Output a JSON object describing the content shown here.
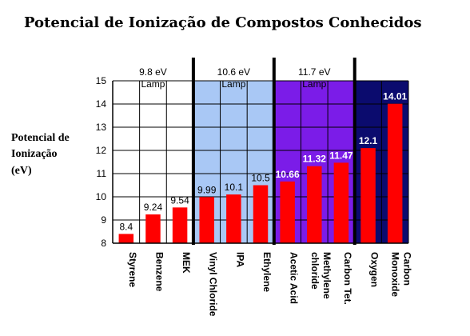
{
  "chart_data": {
    "type": "bar",
    "title": "Potencial de Ionização de Compostos Conhecidos",
    "ylabel_lines": [
      "Potencial de",
      "Ionização",
      "(eV)"
    ],
    "xlabel": "",
    "ylim": [
      8,
      15
    ],
    "yticks": [
      8,
      9,
      10,
      11,
      12,
      13,
      14,
      15
    ],
    "grid": true,
    "bar_color": "#ff0000",
    "categories": [
      {
        "lines": [
          "Styrene"
        ]
      },
      {
        "lines": [
          "Benzene"
        ]
      },
      {
        "lines": [
          "MEK"
        ]
      },
      {
        "lines": [
          "Vinyl Chloride"
        ]
      },
      {
        "lines": [
          "IPA"
        ]
      },
      {
        "lines": [
          "Ethylene"
        ]
      },
      {
        "lines": [
          "Acetic Acid"
        ]
      },
      {
        "lines": [
          "Methylene",
          "chloride"
        ]
      },
      {
        "lines": [
          "Carbon Tet."
        ]
      },
      {
        "lines": [
          "Oxygen"
        ]
      },
      {
        "lines": [
          "Carbon",
          "Monoxide"
        ]
      }
    ],
    "values": [
      8.4,
      9.24,
      9.54,
      9.99,
      10.1,
      10.5,
      10.66,
      11.32,
      11.47,
      12.1,
      14.01
    ],
    "value_labels": [
      "8.4",
      "9.24",
      "9.54",
      "9.99",
      "10.1",
      "10.5",
      "10.66",
      "11.32",
      "11.47",
      "12.1",
      "14.01"
    ],
    "regions": [
      {
        "label_lines": [
          "9.8 eV",
          "Lamp"
        ],
        "from": 0,
        "to": 2,
        "color": "#ffffff",
        "label_color": "#000000"
      },
      {
        "label_lines": [
          "10.6 eV",
          "Lamp"
        ],
        "from": 3,
        "to": 5,
        "color": "#a9c8f5",
        "label_color": "#000000"
      },
      {
        "label_lines": [
          "11.7 eV",
          "Lamp"
        ],
        "from": 6,
        "to": 8,
        "color": "#7b1ce8",
        "label_color": "#000000"
      },
      {
        "label_lines": [],
        "from": 9,
        "to": 10,
        "color": "#0b0b6e",
        "label_color": "#000000"
      }
    ]
  }
}
